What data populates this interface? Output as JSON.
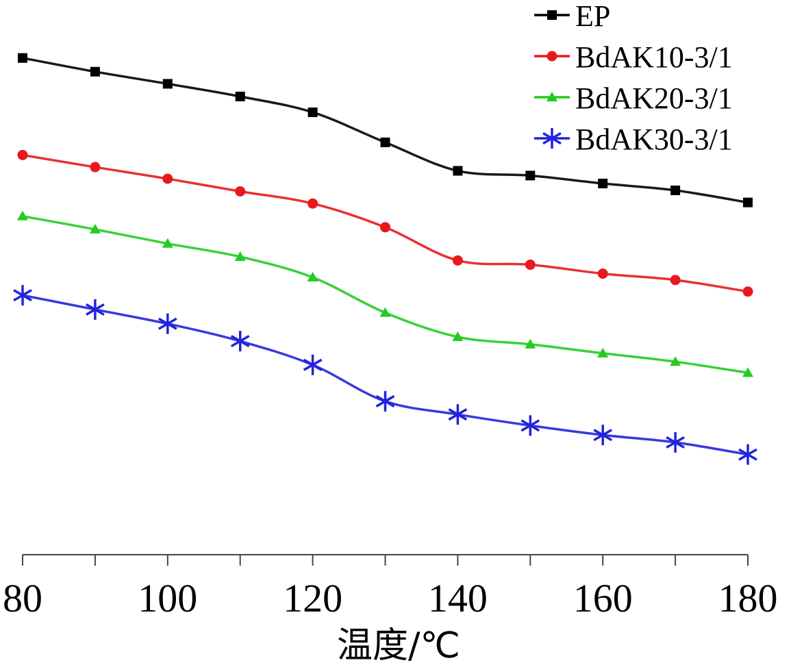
{
  "chart_data": {
    "type": "line",
    "title": "",
    "xlabel": "温度/℃",
    "ylabel": "",
    "xlim": [
      80,
      180
    ],
    "ylim": [
      0,
      100
    ],
    "x_ticks": [
      80,
      100,
      120,
      140,
      160,
      180
    ],
    "x_tick_labels": [
      "80",
      "100",
      "120",
      "140",
      "160",
      "180"
    ],
    "y_ticks_shown": false,
    "grid": false,
    "legend_position": "top-right",
    "x": [
      80,
      90,
      100,
      110,
      120,
      130,
      140,
      150,
      160,
      170,
      180
    ],
    "series": [
      {
        "name": "EP",
        "color": "#000000",
        "marker": "square",
        "values": [
          92.9,
          90.3,
          88.0,
          85.6,
          82.6,
          76.9,
          71.5,
          70.6,
          69.1,
          67.8,
          65.5
        ]
      },
      {
        "name": "BdAK10-3/1",
        "color": "#e8191e",
        "marker": "circle",
        "values": [
          74.5,
          72.2,
          70.0,
          67.6,
          65.3,
          60.8,
          54.5,
          53.7,
          52.0,
          50.8,
          48.6
        ]
      },
      {
        "name": "BdAK20-3/1",
        "color": "#22cc22",
        "marker": "triangle",
        "values": [
          62.9,
          60.4,
          57.7,
          55.2,
          51.3,
          44.6,
          40.0,
          38.6,
          36.9,
          35.3,
          33.2
        ]
      },
      {
        "name": "BdAK30-3/1",
        "color": "#2222dd",
        "marker": "asterisk",
        "values": [
          47.9,
          45.2,
          42.5,
          39.2,
          34.7,
          27.8,
          25.3,
          23.2,
          21.4,
          20.0,
          17.7
        ]
      }
    ]
  }
}
